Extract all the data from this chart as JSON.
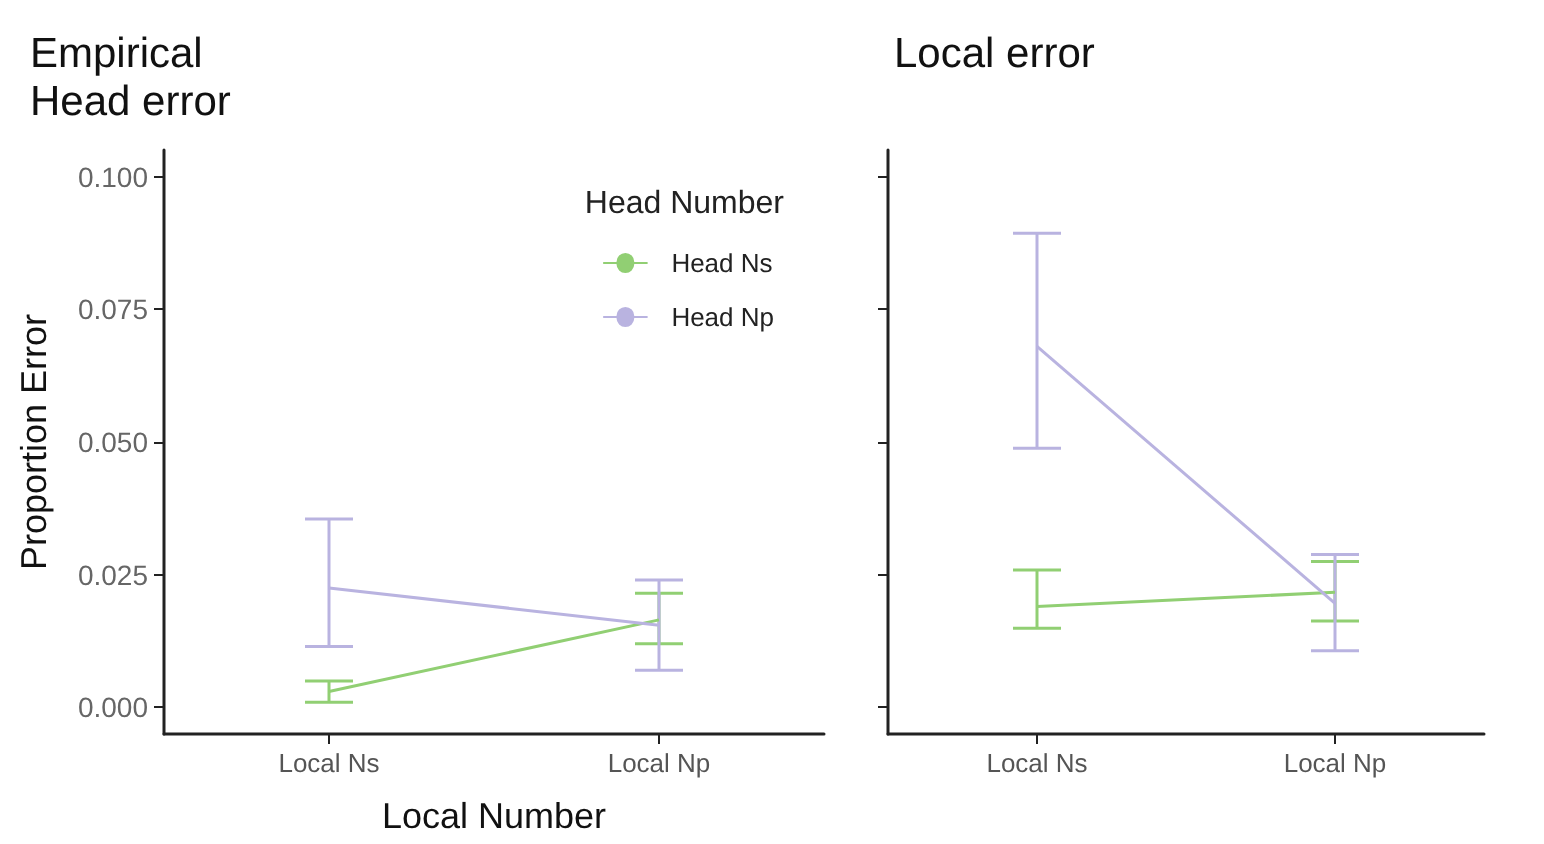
{
  "chart_data": [
    {
      "type": "line",
      "title": "Empirical Head error",
      "xlabel": "Local Number",
      "ylabel": "Proportion Error",
      "legend_title": "Head Number",
      "legend": "top right",
      "grid": false,
      "marker": "none",
      "categories": [
        "Local Ns",
        "Local Np"
      ],
      "ylim": [
        -0.005,
        0.105
      ],
      "yticks": [
        {
          "value": 0,
          "label": "0.000"
        },
        {
          "value": 0.025,
          "label": "0.025"
        },
        {
          "value": 0.05,
          "label": "0.050"
        },
        {
          "value": 0.075,
          "label": "0.075"
        },
        {
          "value": 0.1,
          "label": "0.100"
        }
      ],
      "series": [
        {
          "name": "Head Ns",
          "color": "#91cf73",
          "values": [
            0.003,
            0.0165
          ],
          "errors": [
            [
              0.001,
              0.005
            ],
            [
              0.012,
              0.0215
            ]
          ]
        },
        {
          "name": "Head Np",
          "color": "#b9b3e0",
          "values": [
            0.0225,
            0.0155
          ],
          "errors": [
            [
              0.0115,
              0.0355
            ],
            [
              0.007,
              0.024
            ]
          ]
        }
      ]
    },
    {
      "type": "line",
      "title": "Local error",
      "grid": false,
      "marker": "none",
      "tick_labels": "x",
      "categories": [
        "Local Ns",
        "Local Np"
      ],
      "ylim": [
        -0.005,
        0.105
      ],
      "yticks": [
        {
          "value": 0,
          "label": null
        },
        {
          "value": 0.025,
          "label": null
        },
        {
          "value": 0.05,
          "label": null
        },
        {
          "value": 0.075,
          "label": null
        },
        {
          "value": 0.1,
          "label": null
        }
      ],
      "series": [
        {
          "color": "#91cf73",
          "values": [
            0.019,
            0.0217
          ],
          "errors": [
            [
              0.0149,
              0.0259
            ],
            [
              0.0163,
              0.0275
            ]
          ]
        },
        {
          "color": "#b9b3e0",
          "values": [
            0.068,
            0.0196
          ],
          "errors": [
            [
              0.0488,
              0.0893
            ],
            [
              0.0107,
              0.0288
            ]
          ]
        }
      ]
    }
  ]
}
